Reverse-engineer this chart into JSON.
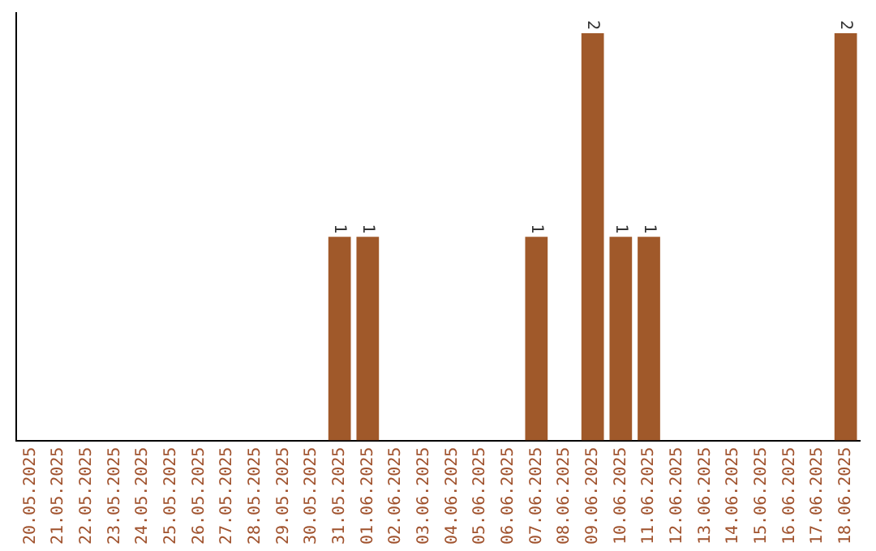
{
  "chart_data": {
    "type": "bar",
    "categories": [
      "20.05.2025",
      "21.05.2025",
      "22.05.2025",
      "23.05.2025",
      "24.05.2025",
      "25.05.2025",
      "26.05.2025",
      "27.05.2025",
      "28.05.2025",
      "29.05.2025",
      "30.05.2025",
      "31.05.2025",
      "01.06.2025",
      "02.06.2025",
      "03.06.2025",
      "04.06.2025",
      "05.06.2025",
      "06.06.2025",
      "07.06.2025",
      "08.06.2025",
      "09.06.2025",
      "10.06.2025",
      "11.06.2025",
      "12.06.2025",
      "13.06.2025",
      "14.06.2025",
      "15.06.2025",
      "16.06.2025",
      "17.06.2025",
      "18.06.2025"
    ],
    "values": [
      0,
      0,
      0,
      0,
      0,
      0,
      0,
      0,
      0,
      0,
      0,
      1,
      1,
      0,
      0,
      0,
      0,
      0,
      1,
      0,
      2,
      1,
      1,
      0,
      0,
      0,
      0,
      0,
      0,
      2
    ],
    "value_labels": [
      null,
      null,
      null,
      null,
      null,
      null,
      null,
      null,
      null,
      null,
      null,
      "1",
      "1",
      null,
      null,
      null,
      null,
      null,
      "1",
      null,
      "2",
      "1",
      "1",
      null,
      null,
      null,
      null,
      null,
      null,
      "2"
    ],
    "color": "#a0592a",
    "ylim": [
      0,
      2.1
    ],
    "tick_labels": "x",
    "grid": false,
    "legend": false
  }
}
